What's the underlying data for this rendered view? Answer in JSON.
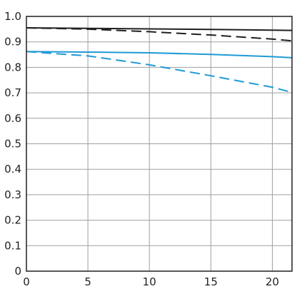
{
  "chart_data": {
    "type": "line",
    "title": "",
    "xlabel": "",
    "ylabel": "",
    "xlim": [
      0,
      21.6
    ],
    "ylim": [
      0,
      1.0
    ],
    "x_ticks": [
      0,
      5,
      10,
      15,
      20
    ],
    "x_tick_labels": [
      "0",
      "5",
      "10",
      "15",
      "20"
    ],
    "y_ticks": [
      0,
      0.1,
      0.2,
      0.3,
      0.4,
      0.5,
      0.6,
      0.7,
      0.8,
      0.9,
      1.0
    ],
    "y_tick_labels": [
      "0",
      "0.1",
      "0.2",
      "0.3",
      "0.4",
      "0.5",
      "0.6",
      "0.7",
      "0.8",
      "0.9",
      "1.0"
    ],
    "grid": true,
    "legend": "none",
    "series": [
      {
        "color": "#231f20",
        "dash": "solid",
        "x": [
          0,
          5,
          10,
          15,
          20,
          21.6
        ],
        "y": [
          0.955,
          0.953,
          0.951,
          0.949,
          0.946,
          0.945
        ]
      },
      {
        "color": "#231f20",
        "dash": "dashed",
        "x": [
          0,
          5,
          10,
          15,
          20,
          21.6
        ],
        "y": [
          0.955,
          0.95,
          0.94,
          0.927,
          0.911,
          0.904
        ]
      },
      {
        "color": "#1f9ad6",
        "dash": "solid",
        "x": [
          0,
          5,
          10,
          15,
          20,
          21.6
        ],
        "y": [
          0.862,
          0.86,
          0.857,
          0.851,
          0.842,
          0.838
        ]
      },
      {
        "color": "#1f9ad6",
        "dash": "dashed",
        "x": [
          0,
          5,
          10,
          15,
          20,
          21.6
        ],
        "y": [
          0.862,
          0.845,
          0.81,
          0.767,
          0.722,
          0.702
        ]
      }
    ]
  }
}
